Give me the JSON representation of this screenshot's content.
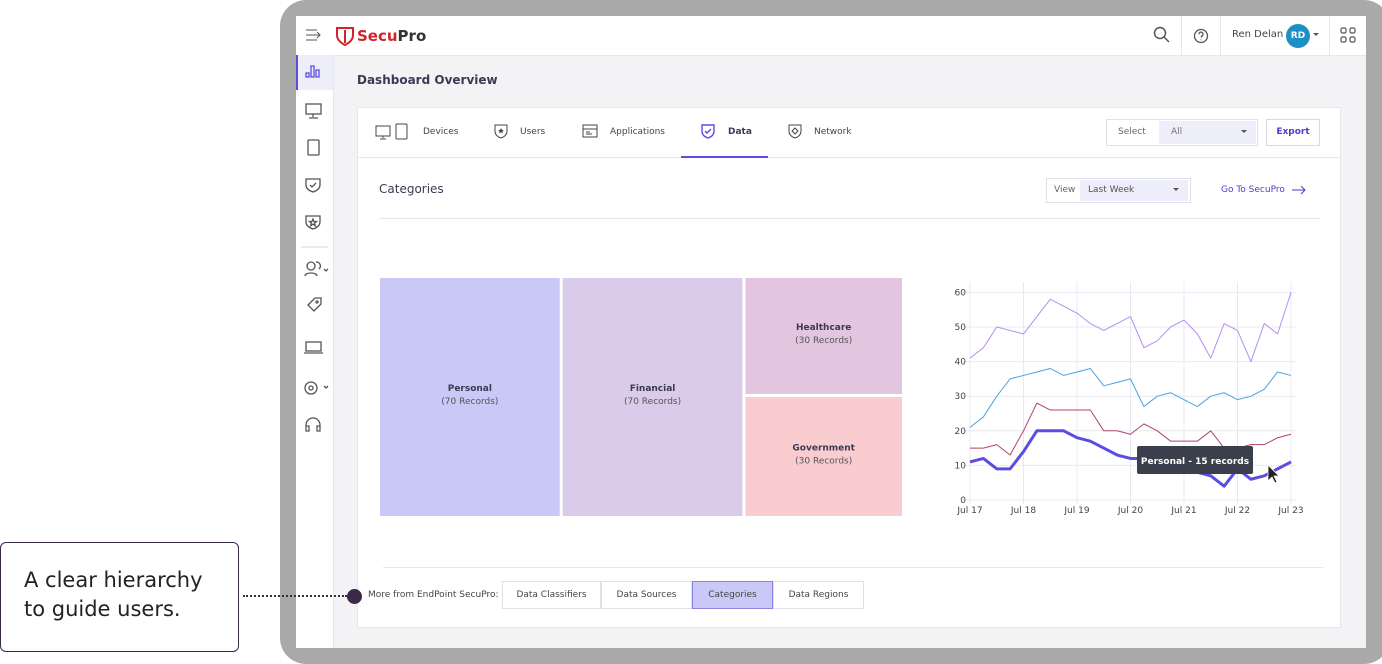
{
  "header": {
    "logo_a": "Secu",
    "logo_b": "Pro",
    "user_name": "Ren Delan",
    "avatar": "RD"
  },
  "page_title": "Dashboard Overview",
  "tabs": [
    "Devices",
    "Users",
    "Applications",
    "Data",
    "Network"
  ],
  "active_tab": 3,
  "filter": {
    "label": "Select",
    "value": "All"
  },
  "export": "Export",
  "section": {
    "title": "Categories",
    "view_label": "View",
    "view_value": "Last Week",
    "link": "Go To SecuPro"
  },
  "treemap": {
    "type": "treemap",
    "items": [
      {
        "name": "Personal",
        "value": 70,
        "value_label": "(70 Records)",
        "color": "#c9c8f7"
      },
      {
        "name": "Financial",
        "value": 70,
        "value_label": "(70 Records)",
        "color": "#dacbea"
      },
      {
        "name": "Healthcare",
        "value": 30,
        "value_label": "(30 Records)",
        "color": "#e4c5df"
      },
      {
        "name": "Government",
        "value": 30,
        "value_label": "(30 Records)",
        "color": "#f9cdd0"
      }
    ]
  },
  "line_chart": {
    "type": "line",
    "x": [
      0,
      0.25,
      0.5,
      0.75,
      1,
      1.25,
      1.5,
      1.75,
      2,
      2.25,
      2.5,
      2.75,
      3,
      3.25,
      3.5,
      3.75,
      4,
      4.25,
      4.5,
      4.75,
      5,
      5.25,
      5.5,
      5.75,
      6
    ],
    "xlim": [
      0,
      6
    ],
    "xticks": [
      {
        "value": 0,
        "label": "Jul 17"
      },
      {
        "value": 1,
        "label": "Jul 18"
      },
      {
        "value": 2,
        "label": "Jul 19"
      },
      {
        "value": 3,
        "label": "Jul 20"
      },
      {
        "value": 4,
        "label": "Jul 21"
      },
      {
        "value": 5,
        "label": "Jul 22"
      },
      {
        "value": 6,
        "label": "Jul 23"
      }
    ],
    "ylim": [
      0,
      63
    ],
    "yticks": [
      0,
      10,
      20,
      30,
      40,
      50,
      60
    ],
    "grid": true,
    "series": [
      {
        "color": "#b48ef0",
        "width": 1,
        "values": [
          41,
          44,
          50,
          49,
          48,
          53,
          58,
          56,
          54,
          51,
          49,
          51,
          53,
          44,
          46,
          50,
          52,
          48,
          41,
          51,
          49,
          40,
          51,
          48,
          60
        ]
      },
      {
        "color": "#4aa3df",
        "width": 1,
        "values": [
          21,
          24,
          30,
          35,
          36,
          37,
          38,
          36,
          37,
          38,
          33,
          34,
          35,
          27,
          30,
          31,
          29,
          27,
          30,
          31,
          29,
          30,
          32,
          37,
          36
        ]
      },
      {
        "color": "#b3426f",
        "width": 1,
        "values": [
          15,
          15,
          16,
          13,
          20,
          28,
          26,
          26,
          26,
          26,
          20,
          20,
          19,
          22,
          20,
          17,
          17,
          17,
          20,
          15,
          15,
          16,
          16,
          18,
          19
        ]
      },
      {
        "color": "#5a4de0",
        "width": 3,
        "values": [
          11,
          12,
          9,
          9,
          14,
          20,
          20,
          20,
          18,
          17,
          15,
          13,
          12,
          12,
          11,
          12,
          10,
          8,
          7,
          4,
          9,
          6,
          7,
          9,
          11
        ]
      }
    ],
    "tooltip": "Personal - 15 records"
  },
  "footer": {
    "label": "More from EndPoint SecuPro:",
    "buttons": [
      "Data Classifiers",
      "Data Sources",
      "Categories",
      "Data Regions"
    ],
    "active": 2
  },
  "callout": "A clear hierarchy to guide users."
}
